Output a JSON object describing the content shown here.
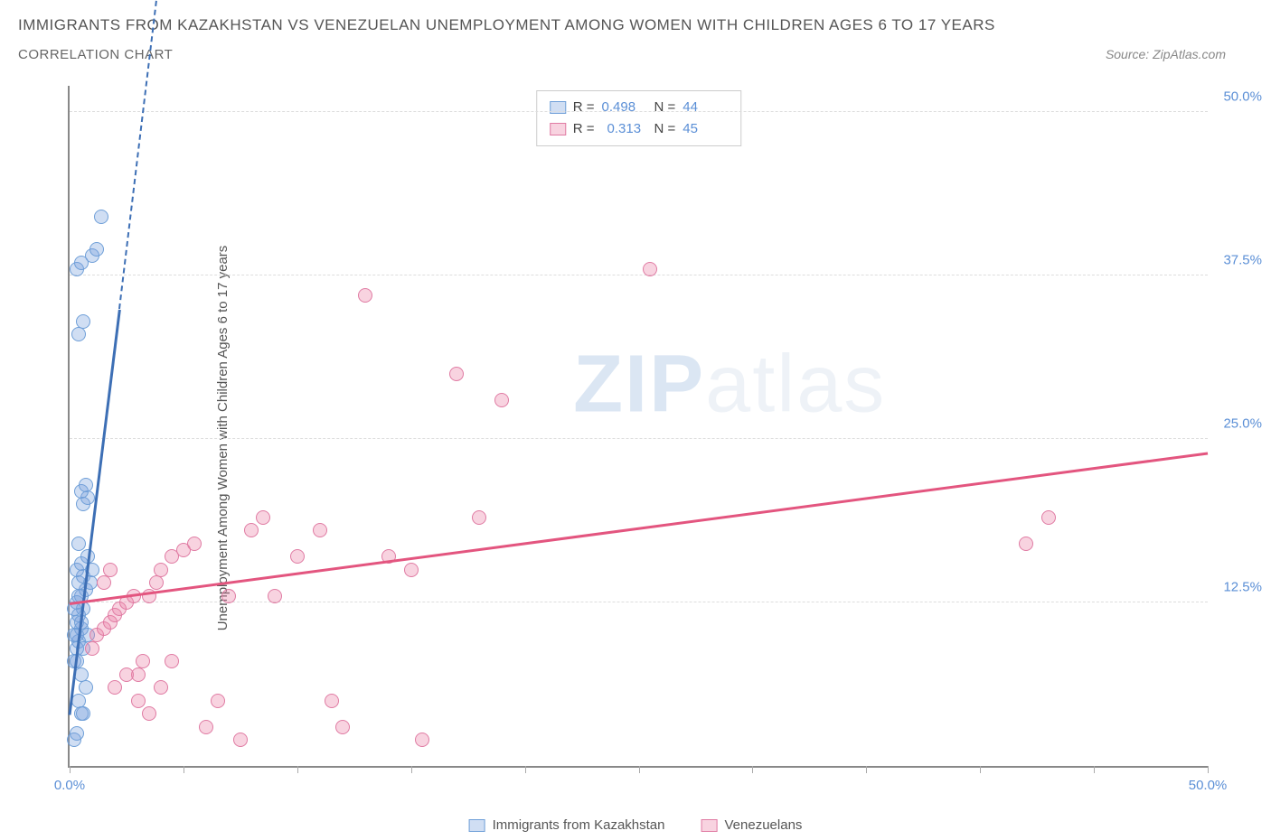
{
  "header": {
    "title": "IMMIGRANTS FROM KAZAKHSTAN VS VENEZUELAN UNEMPLOYMENT AMONG WOMEN WITH CHILDREN AGES 6 TO 17 YEARS",
    "subtitle": "CORRELATION CHART",
    "source": "Source: ZipAtlas.com"
  },
  "chart": {
    "type": "scatter",
    "ylabel": "Unemployment Among Women with Children Ages 6 to 17 years",
    "xlim": [
      0,
      50
    ],
    "ylim": [
      0,
      52
    ],
    "xticks": [
      0,
      5,
      10,
      15,
      20,
      25,
      30,
      35,
      40,
      45,
      50
    ],
    "xtick_labels": {
      "0": "0.0%",
      "50": "50.0%"
    },
    "yticks": [
      12.5,
      25.0,
      37.5,
      50.0
    ],
    "ytick_labels": [
      "12.5%",
      "25.0%",
      "37.5%",
      "50.0%"
    ],
    "background_color": "#ffffff",
    "grid_color": "#dddddd",
    "axis_color": "#888888",
    "marker_radius": 8,
    "series": [
      {
        "name": "Immigrants from Kazakhstan",
        "color_fill": "rgba(120,160,220,0.35)",
        "color_stroke": "#6f9fd8",
        "R": "0.498",
        "N": "44",
        "trend": {
          "x1": 0,
          "y1": 4,
          "x2": 2.2,
          "y2": 35,
          "dash_x2": 4.2,
          "dash_y2": 64,
          "color": "#3d6fb5"
        },
        "points": [
          [
            0.2,
            2
          ],
          [
            0.3,
            2.5
          ],
          [
            0.5,
            4
          ],
          [
            0.2,
            8
          ],
          [
            0.3,
            9
          ],
          [
            0.4,
            9.5
          ],
          [
            0.2,
            10
          ],
          [
            0.5,
            10.5
          ],
          [
            0.3,
            11
          ],
          [
            0.4,
            11.5
          ],
          [
            0.6,
            12
          ],
          [
            0.3,
            12.5
          ],
          [
            0.5,
            13
          ],
          [
            0.7,
            13.5
          ],
          [
            0.4,
            14
          ],
          [
            0.6,
            14.5
          ],
          [
            0.3,
            15
          ],
          [
            0.5,
            15.5
          ],
          [
            0.8,
            16
          ],
          [
            0.4,
            17
          ],
          [
            0.6,
            20
          ],
          [
            0.8,
            20.5
          ],
          [
            0.5,
            21
          ],
          [
            0.7,
            21.5
          ],
          [
            0.9,
            14
          ],
          [
            1.0,
            15
          ],
          [
            0.4,
            33
          ],
          [
            0.6,
            34
          ],
          [
            0.3,
            38
          ],
          [
            0.5,
            38.5
          ],
          [
            1.0,
            39
          ],
          [
            1.2,
            39.5
          ],
          [
            1.4,
            42
          ],
          [
            0.3,
            10
          ],
          [
            0.5,
            11
          ],
          [
            0.2,
            12
          ],
          [
            0.4,
            13
          ],
          [
            0.6,
            9
          ],
          [
            0.8,
            10
          ],
          [
            0.3,
            8
          ],
          [
            0.5,
            7
          ],
          [
            0.7,
            6
          ],
          [
            0.4,
            5
          ],
          [
            0.6,
            4
          ]
        ]
      },
      {
        "name": "Venezuelans",
        "color_fill": "rgba(235,130,165,0.35)",
        "color_stroke": "#e07ba3",
        "R": "0.313",
        "N": "45",
        "trend": {
          "x1": 0,
          "y1": 12.5,
          "x2": 50,
          "y2": 24,
          "color": "#e3557f"
        },
        "points": [
          [
            1,
            9
          ],
          [
            1.2,
            10
          ],
          [
            1.5,
            10.5
          ],
          [
            1.8,
            11
          ],
          [
            2,
            11.5
          ],
          [
            2.2,
            12
          ],
          [
            2.5,
            12.5
          ],
          [
            2.8,
            13
          ],
          [
            3,
            7
          ],
          [
            3.2,
            8
          ],
          [
            3.5,
            13
          ],
          [
            3.8,
            14
          ],
          [
            4,
            15
          ],
          [
            4.5,
            16
          ],
          [
            5,
            16.5
          ],
          [
            5.5,
            17
          ],
          [
            6,
            3
          ],
          [
            6.5,
            5
          ],
          [
            7,
            13
          ],
          [
            7.5,
            2
          ],
          [
            8,
            18
          ],
          [
            8.5,
            19
          ],
          [
            9,
            13
          ],
          [
            10,
            16
          ],
          [
            11,
            18
          ],
          [
            11.5,
            5
          ],
          [
            12,
            3
          ],
          [
            13,
            36
          ],
          [
            14,
            16
          ],
          [
            15,
            15
          ],
          [
            15.5,
            2
          ],
          [
            17,
            30
          ],
          [
            18,
            19
          ],
          [
            19,
            28
          ],
          [
            25.5,
            38
          ],
          [
            42,
            17
          ],
          [
            43,
            19
          ],
          [
            2,
            6
          ],
          [
            2.5,
            7
          ],
          [
            3,
            5
          ],
          [
            3.5,
            4
          ],
          [
            4,
            6
          ],
          [
            4.5,
            8
          ],
          [
            1.5,
            14
          ],
          [
            1.8,
            15
          ]
        ]
      }
    ],
    "bottom_legend": [
      {
        "label": "Immigrants from Kazakhstan",
        "fill": "rgba(120,160,220,0.35)",
        "stroke": "#6f9fd8"
      },
      {
        "label": "Venezuelans",
        "fill": "rgba(235,130,165,0.35)",
        "stroke": "#e07ba3"
      }
    ],
    "watermark": {
      "bold": "ZIP",
      "light": "atlas"
    }
  }
}
